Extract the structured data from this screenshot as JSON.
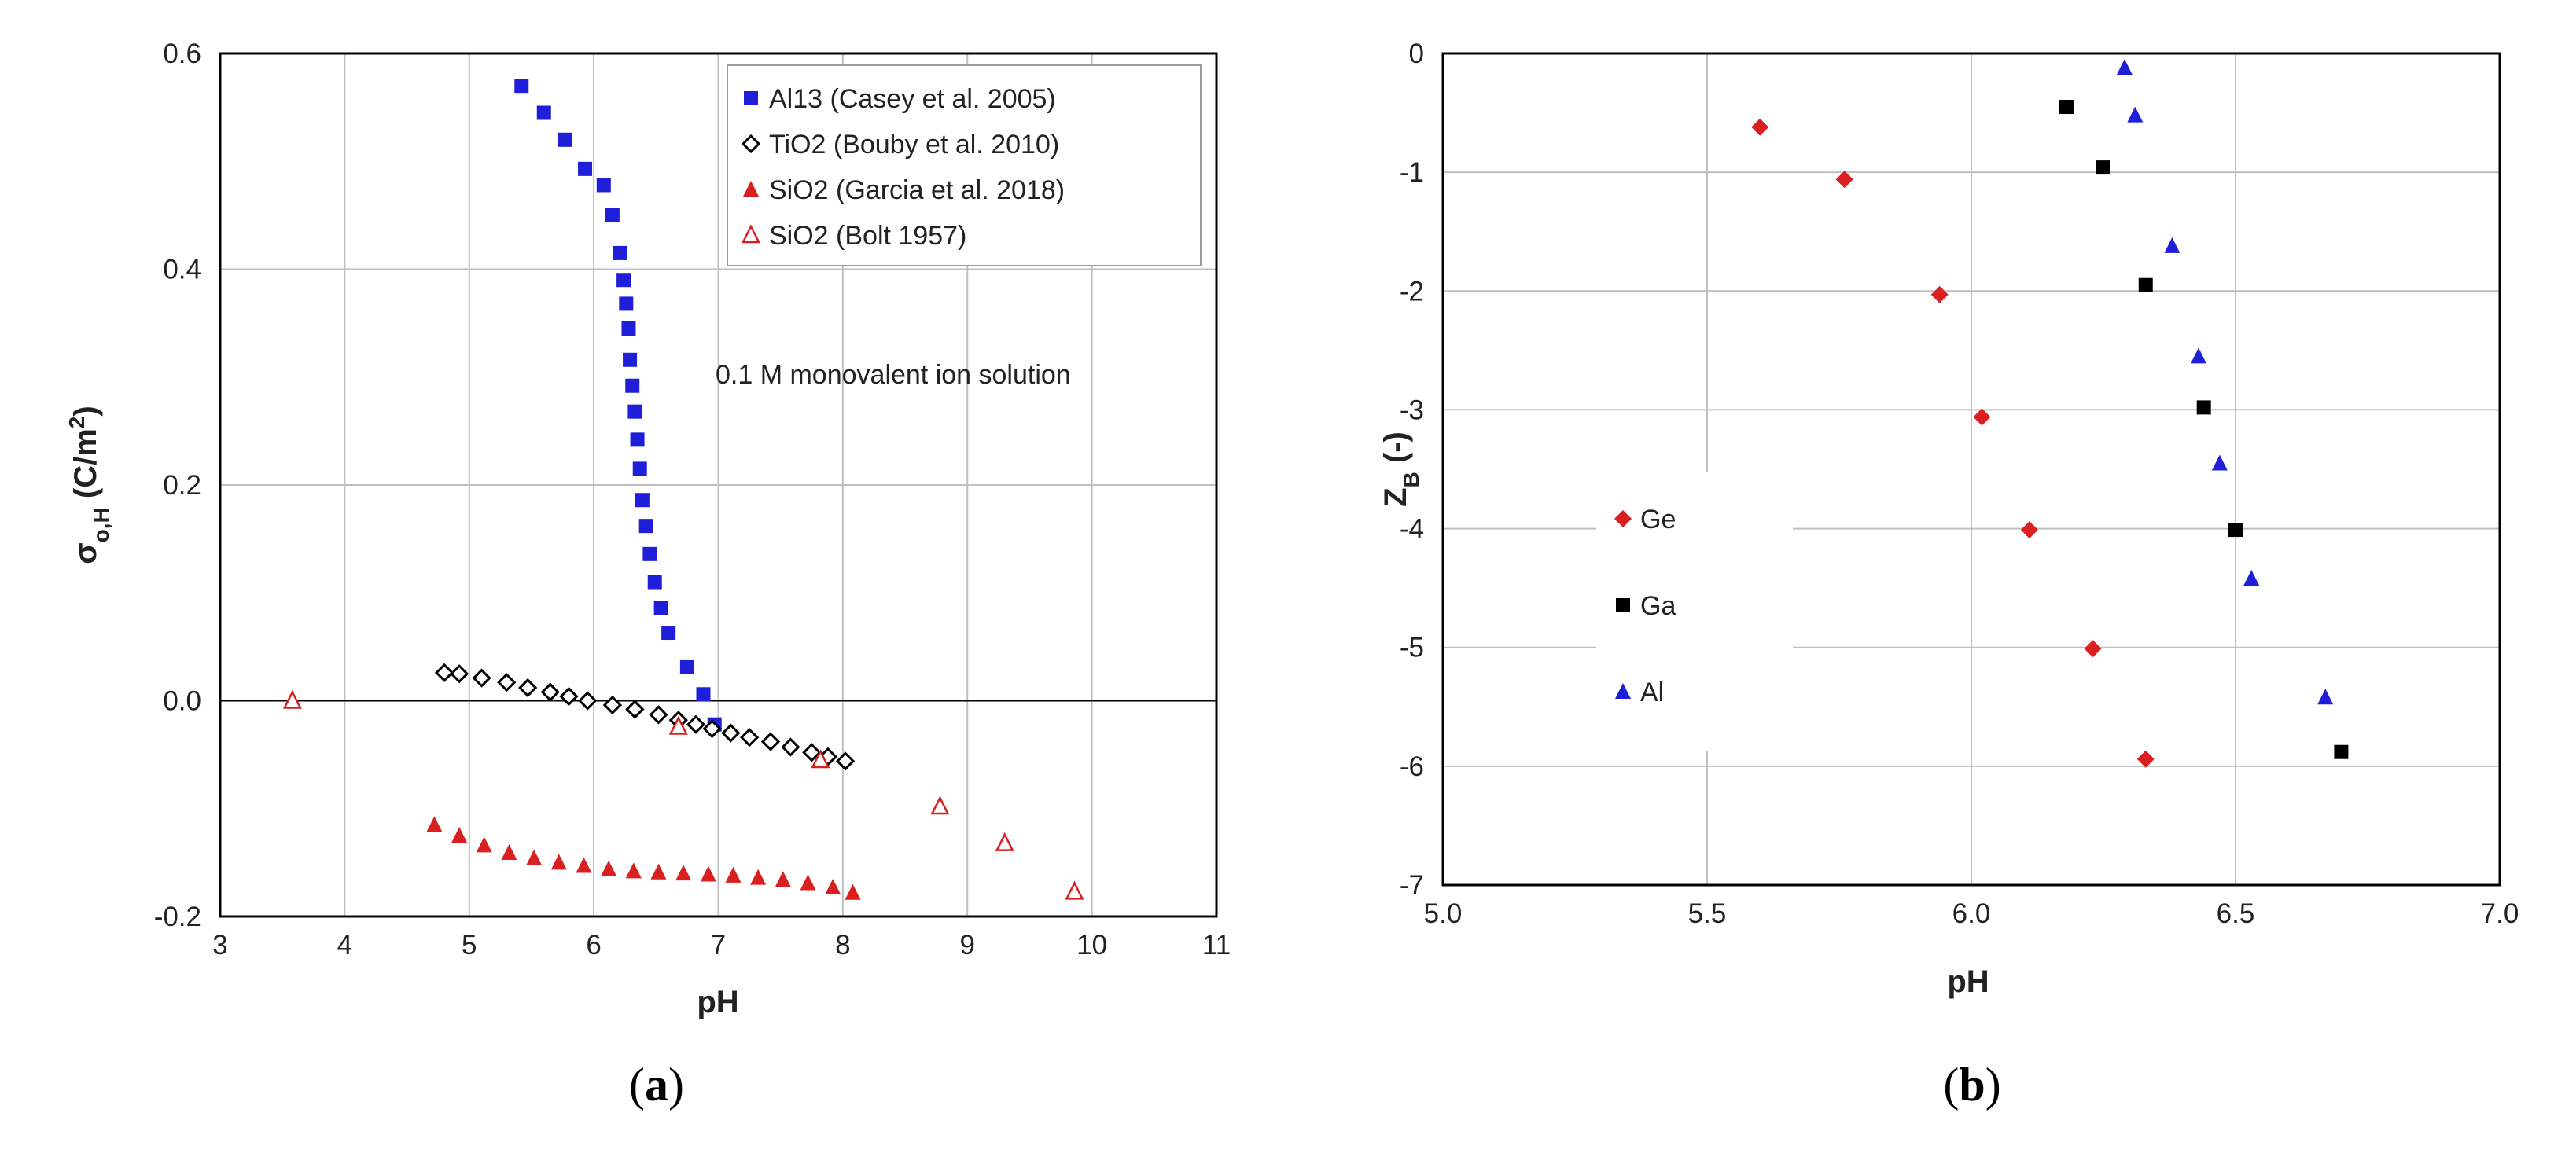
{
  "chart_data": [
    {
      "type": "scatter",
      "xlabel": "pH",
      "ylabel": "σ",
      "ylabel_sub": "o,H",
      "ylabel_unit": " (C/m",
      "ylabel_sup": "2",
      "ylabel_close": ")",
      "xlim": [
        3,
        11
      ],
      "ylim": [
        -0.2,
        0.6
      ],
      "xticks": [
        3,
        4,
        5,
        6,
        7,
        8,
        9,
        10,
        11
      ],
      "yticks": [
        -0.2,
        0.0,
        0.2,
        0.4,
        0.6
      ],
      "xtick_labels": [
        "3",
        "4",
        "5",
        "6",
        "7",
        "8",
        "9",
        "10",
        "11"
      ],
      "ytick_labels": [
        "-0.2",
        "0.0",
        "0.2",
        "0.4",
        "0.6"
      ],
      "grid": true,
      "legend_position": "top-right",
      "annotation": "0.1 M monovalent ion solution",
      "caption": "a",
      "series": [
        {
          "name": "Al13 (Casey et al. 2005)",
          "marker": "square",
          "color": "#1f1fd9",
          "points": [
            [
              5.42,
              0.57
            ],
            [
              5.6,
              0.545
            ],
            [
              5.77,
              0.52
            ],
            [
              5.93,
              0.493
            ],
            [
              6.08,
              0.478
            ],
            [
              6.15,
              0.45
            ],
            [
              6.21,
              0.415
            ],
            [
              6.24,
              0.39
            ],
            [
              6.26,
              0.368
            ],
            [
              6.28,
              0.345
            ],
            [
              6.29,
              0.316
            ],
            [
              6.31,
              0.292
            ],
            [
              6.33,
              0.268
            ],
            [
              6.35,
              0.242
            ],
            [
              6.37,
              0.215
            ],
            [
              6.39,
              0.186
            ],
            [
              6.42,
              0.162
            ],
            [
              6.45,
              0.136
            ],
            [
              6.49,
              0.11
            ],
            [
              6.54,
              0.086
            ],
            [
              6.6,
              0.063
            ],
            [
              6.75,
              0.031
            ],
            [
              6.88,
              0.006
            ],
            [
              6.97,
              -0.022
            ]
          ]
        },
        {
          "name": "TiO2 (Bouby et al. 2010)",
          "marker": "diamond-open",
          "color": "#000000",
          "points": [
            [
              4.8,
              0.026
            ],
            [
              4.92,
              0.025
            ],
            [
              5.1,
              0.021
            ],
            [
              5.3,
              0.017
            ],
            [
              5.47,
              0.012
            ],
            [
              5.65,
              0.008
            ],
            [
              5.8,
              0.004
            ],
            [
              5.95,
              0.0
            ],
            [
              6.15,
              -0.004
            ],
            [
              6.33,
              -0.008
            ],
            [
              6.52,
              -0.013
            ],
            [
              6.68,
              -0.018
            ],
            [
              6.82,
              -0.022
            ],
            [
              6.95,
              -0.026
            ],
            [
              7.1,
              -0.03
            ],
            [
              7.25,
              -0.034
            ],
            [
              7.42,
              -0.038
            ],
            [
              7.58,
              -0.043
            ],
            [
              7.75,
              -0.048
            ],
            [
              7.88,
              -0.052
            ],
            [
              8.02,
              -0.056
            ]
          ]
        },
        {
          "name": "SiO2 (Garcia et al. 2018)",
          "marker": "triangle",
          "color": "#d91f1f",
          "points": [
            [
              4.72,
              -0.115
            ],
            [
              4.92,
              -0.125
            ],
            [
              5.12,
              -0.134
            ],
            [
              5.32,
              -0.141
            ],
            [
              5.52,
              -0.146
            ],
            [
              5.72,
              -0.15
            ],
            [
              5.92,
              -0.153
            ],
            [
              6.12,
              -0.156
            ],
            [
              6.32,
              -0.158
            ],
            [
              6.52,
              -0.159
            ],
            [
              6.72,
              -0.16
            ],
            [
              6.92,
              -0.161
            ],
            [
              7.12,
              -0.162
            ],
            [
              7.32,
              -0.164
            ],
            [
              7.52,
              -0.166
            ],
            [
              7.72,
              -0.169
            ],
            [
              7.92,
              -0.173
            ],
            [
              8.08,
              -0.178
            ]
          ]
        },
        {
          "name": "SiO2 (Bolt 1957)",
          "marker": "triangle-open",
          "color": "#d91f1f",
          "points": [
            [
              3.58,
              0.0
            ],
            [
              6.68,
              -0.024
            ],
            [
              7.82,
              -0.055
            ],
            [
              8.78,
              -0.098
            ],
            [
              9.3,
              -0.132
            ],
            [
              9.86,
              -0.177
            ]
          ]
        }
      ]
    },
    {
      "type": "scatter",
      "xlabel": "pH",
      "ylabel": "Z",
      "ylabel_sub": "B",
      "ylabel_unit": " (-)",
      "xlim": [
        5.0,
        7.0
      ],
      "ylim": [
        -7,
        0
      ],
      "xticks": [
        5.0,
        5.5,
        6.0,
        6.5,
        7.0
      ],
      "yticks": [
        0,
        -1,
        -2,
        -3,
        -4,
        -5,
        -6,
        -7
      ],
      "xtick_labels": [
        "5.0",
        "5.5",
        "6.0",
        "6.5",
        "7.0"
      ],
      "ytick_labels": [
        "0",
        "-1",
        "-2",
        "-3",
        "-4",
        "-5",
        "-6",
        "-7"
      ],
      "grid": true,
      "legend_position": "middle-left",
      "caption": "b",
      "series": [
        {
          "name": "Ge",
          "marker": "diamond",
          "color": "#d91f1f",
          "points": [
            [
              5.6,
              -0.62
            ],
            [
              5.76,
              -1.06
            ],
            [
              5.94,
              -2.03
            ],
            [
              6.02,
              -3.06
            ],
            [
              6.11,
              -4.01
            ],
            [
              6.23,
              -5.01
            ],
            [
              6.33,
              -5.94
            ]
          ]
        },
        {
          "name": "Ga",
          "marker": "square",
          "color": "#000000",
          "points": [
            [
              6.18,
              -0.45
            ],
            [
              6.25,
              -0.96
            ],
            [
              6.33,
              -1.95
            ],
            [
              6.44,
              -2.98
            ],
            [
              6.5,
              -4.01
            ],
            [
              6.7,
              -5.88
            ]
          ]
        },
        {
          "name": "Al",
          "marker": "triangle",
          "color": "#1f1fd9",
          "points": [
            [
              6.29,
              -0.12
            ],
            [
              6.31,
              -0.52
            ],
            [
              6.38,
              -1.62
            ],
            [
              6.43,
              -2.55
            ],
            [
              6.47,
              -3.45
            ],
            [
              6.53,
              -4.42
            ],
            [
              6.67,
              -5.42
            ]
          ]
        }
      ]
    }
  ]
}
